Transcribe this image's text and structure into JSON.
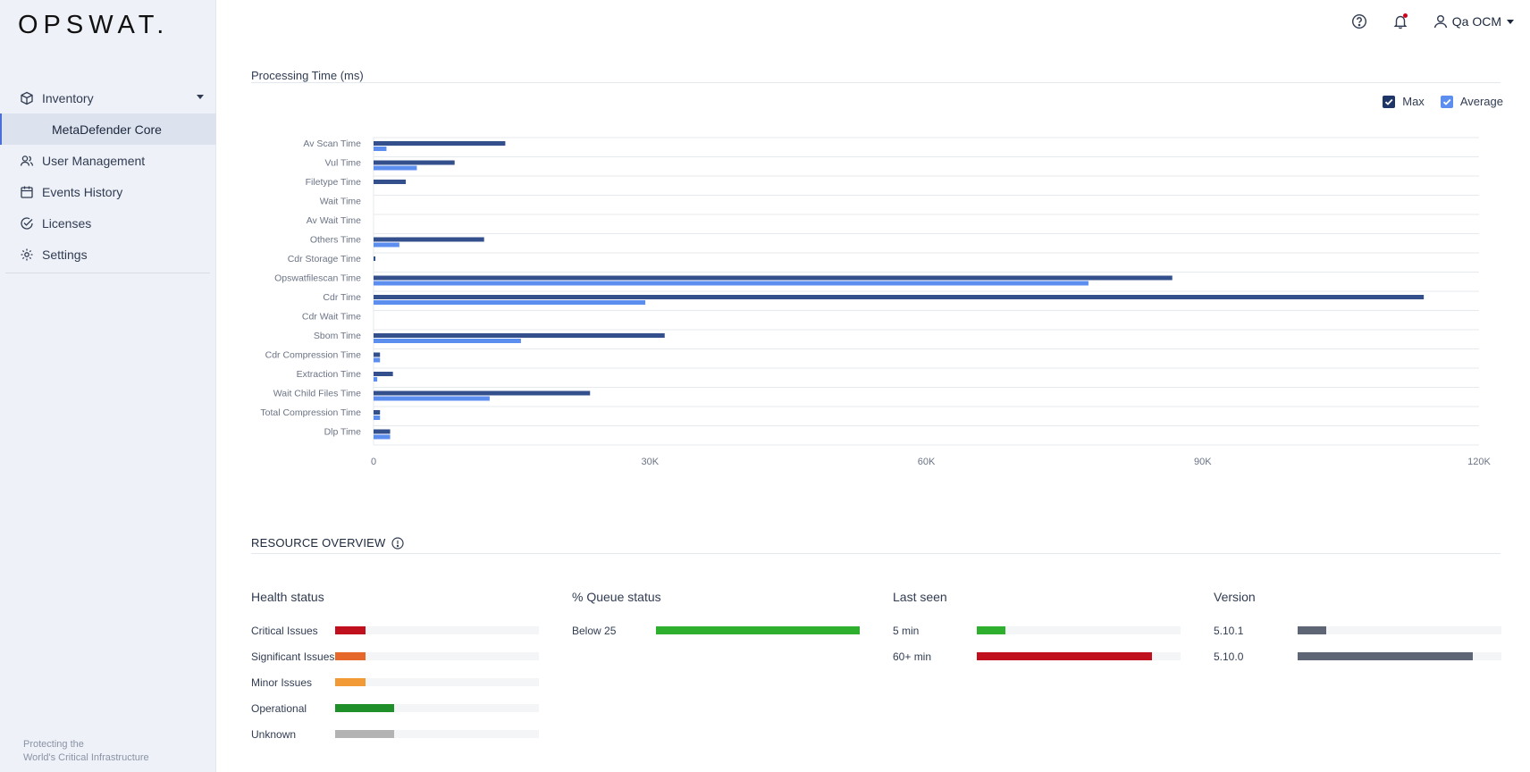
{
  "brand": {
    "logo": "OPSWAT.",
    "tagline_line1": "Protecting the",
    "tagline_line2": "World's Critical Infrastructure"
  },
  "sidebar": {
    "items": [
      {
        "label": "Inventory",
        "icon": "cube-icon"
      },
      {
        "label": "MetaDefender Core",
        "sub": true
      },
      {
        "label": "User Management",
        "icon": "users-icon"
      },
      {
        "label": "Events History",
        "icon": "calendar-icon"
      },
      {
        "label": "Licenses",
        "icon": "badge-check-icon"
      },
      {
        "label": "Settings",
        "icon": "gear-icon"
      }
    ]
  },
  "header": {
    "user_name": "Qa OCM"
  },
  "processing": {
    "title": "Processing Time (ms)",
    "legend": [
      {
        "label": "Max",
        "color": "#34508c"
      },
      {
        "label": "Average",
        "color": "#5c8ef0"
      }
    ]
  },
  "chart_data": {
    "type": "bar",
    "orientation": "horizontal",
    "title": "Processing Time (ms)",
    "categories": [
      "Av Scan Time",
      "Vul Time",
      "Filetype Time",
      "Wait Time",
      "Av Wait Time",
      "Others Time",
      "Cdr Storage Time",
      "Opswatfilescan Time",
      "Cdr Time",
      "Cdr Wait Time",
      "Sbom Time",
      "Cdr Compression Time",
      "Extraction Time",
      "Wait Child Files Time",
      "Total Compression Time",
      "Dlp Time"
    ],
    "series": [
      {
        "name": "Max",
        "color": "#34508c",
        "values": [
          14300,
          8800,
          3500,
          0,
          0,
          12000,
          200,
          86700,
          114000,
          0,
          31600,
          700,
          2100,
          23500,
          700,
          1800
        ]
      },
      {
        "name": "Average",
        "color": "#5c8ef0",
        "values": [
          1400,
          4700,
          0,
          0,
          0,
          2800,
          0,
          77600,
          29500,
          0,
          16000,
          700,
          400,
          12600,
          700,
          1800
        ]
      }
    ],
    "xlim": [
      0,
      120000
    ],
    "xticks": [
      0,
      30000,
      60000,
      90000,
      120000
    ],
    "xtick_labels": [
      "0",
      "30K",
      "60K",
      "90K",
      "120K"
    ],
    "grid": true,
    "legend_position": "top-right"
  },
  "resource": {
    "title": "RESOURCE OVERVIEW",
    "health": {
      "title": "Health status",
      "rows": [
        {
          "label": "Critical Issues",
          "value": 0.15,
          "color": "#c0101e"
        },
        {
          "label": "Significant Issues",
          "value": 0.15,
          "color": "#e6672a"
        },
        {
          "label": "Minor Issues",
          "value": 0.15,
          "color": "#f29a36"
        },
        {
          "label": "Operational",
          "value": 0.29,
          "color": "#1f8f2a"
        },
        {
          "label": "Unknown",
          "value": 0.29,
          "color": "#b3b3b3"
        }
      ]
    },
    "queue": {
      "title": "% Queue status",
      "rows": [
        {
          "label": "Below 25",
          "value": 1.0,
          "color": "#2eaf2e"
        }
      ]
    },
    "last_seen": {
      "title": "Last seen",
      "rows": [
        {
          "label": "5 min",
          "value": 0.14,
          "color": "#2eaf2e"
        },
        {
          "label": "60+ min",
          "value": 0.86,
          "color": "#c0101e"
        }
      ]
    },
    "version": {
      "title": "Version",
      "rows": [
        {
          "label": "5.10.1",
          "value": 0.14,
          "color": "#5e6575"
        },
        {
          "label": "5.10.0",
          "value": 0.86,
          "color": "#5e6575"
        }
      ]
    }
  }
}
